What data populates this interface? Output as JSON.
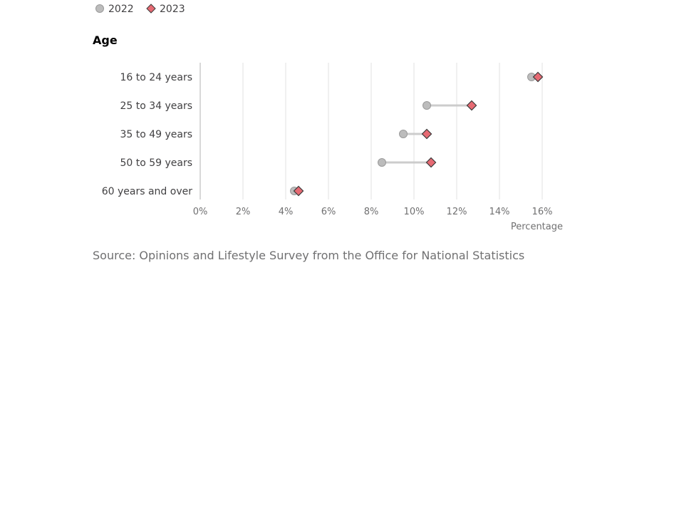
{
  "chart_data": {
    "type": "dot_range",
    "facet_title": "Age",
    "categories": [
      "16 to 24 years",
      "25 to 34 years",
      "35 to 49 years",
      "50 to 59 years",
      "60 years and over"
    ],
    "series": [
      {
        "name": "2022",
        "values": [
          15.5,
          10.6,
          9.5,
          8.5,
          4.4
        ],
        "color": "#bcbcbc",
        "marker": "circle"
      },
      {
        "name": "2023",
        "values": [
          15.8,
          12.7,
          10.6,
          10.8,
          4.6
        ],
        "color": "#e66a73",
        "marker": "diamond"
      }
    ],
    "xlabel": "Percentage",
    "xlim": [
      0,
      16
    ],
    "xticks": [
      0,
      2,
      4,
      6,
      8,
      10,
      12,
      14,
      16
    ],
    "tick_format": "%",
    "legend_position": "top-left",
    "grid": true,
    "connector_color": "#cccccc",
    "gridline_color": "#e0e0e0",
    "axis_line_color": "#b3b3b3"
  },
  "source": "Source: Opinions and Lifestyle Survey from the Office for National Statistics"
}
